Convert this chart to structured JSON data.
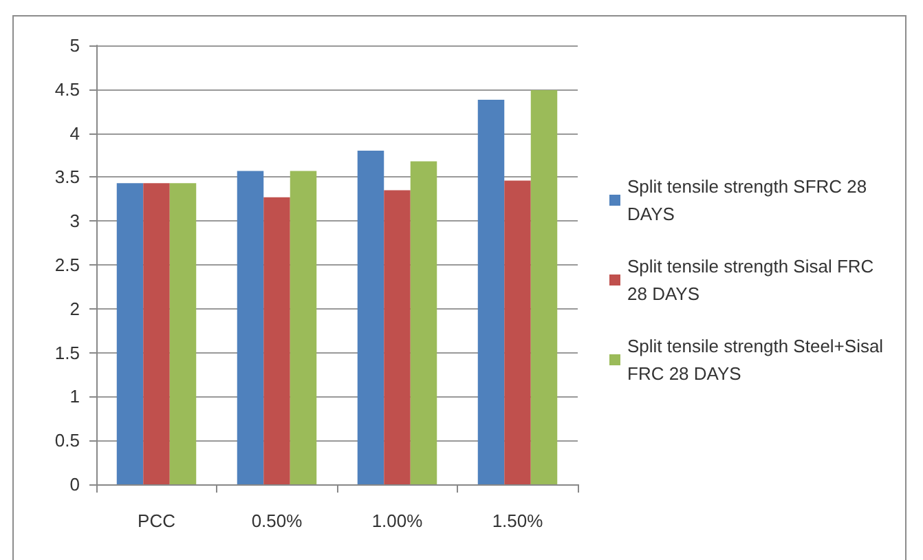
{
  "chart_data": {
    "type": "bar",
    "categories": [
      "PCC",
      "0.50%",
      "1.00%",
      "1.50%"
    ],
    "series": [
      {
        "name": "Split tensile strength SFRC 28 DAYS",
        "color": "#4f81bd",
        "values": [
          3.43,
          3.57,
          3.8,
          4.38
        ]
      },
      {
        "name": "Split tensile strength Sisal FRC 28 DAYS",
        "color": "#c0504d",
        "values": [
          3.43,
          3.27,
          3.35,
          3.46
        ]
      },
      {
        "name": "Split tensile strength Steel+Sisal FRC 28 DAYS",
        "color": "#9bbb59",
        "values": [
          3.43,
          3.57,
          3.68,
          4.49
        ]
      }
    ],
    "ylim": [
      0,
      5
    ],
    "yticks": [
      0,
      0.5,
      1,
      1.5,
      2,
      2.5,
      3,
      3.5,
      4,
      4.5,
      5
    ],
    "grid": "y",
    "legend": "right"
  }
}
